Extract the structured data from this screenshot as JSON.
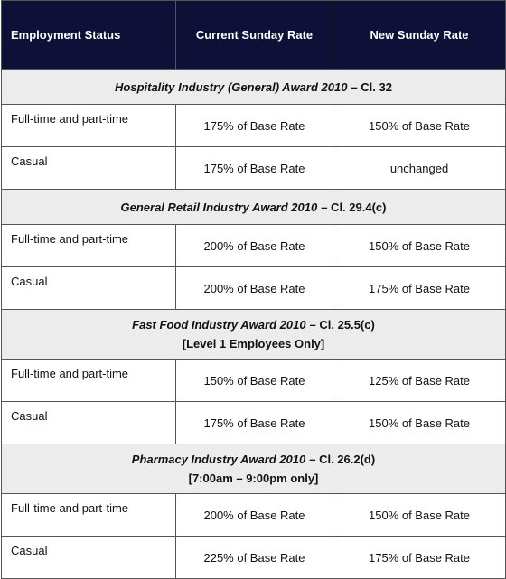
{
  "header": [
    "Employment Status",
    "Current Sunday Rate",
    "New Sunday Rate"
  ],
  "sections": [
    {
      "award": "Hospitality Industry (General) Award 2010",
      "clause": "– Cl. 32",
      "rows": [
        [
          "Full-time and part-time",
          "175% of Base Rate",
          "150% of Base Rate"
        ],
        [
          "Casual",
          "175% of Base Rate",
          "unchanged"
        ]
      ]
    },
    {
      "award": "General Retail Industry Award 2010",
      "clause": "– Cl. 29.4(c)",
      "rows": [
        [
          "Full-time and part-time",
          "200% of Base Rate",
          "150% of Base Rate"
        ],
        [
          "Casual",
          "200% of Base Rate",
          "175% of Base Rate"
        ]
      ]
    },
    {
      "award": "Fast Food Industry Award 2010",
      "clause": "– Cl. 25.5(c)",
      "note": "[Level 1 Employees Only]",
      "rows": [
        [
          "Full-time and part-time",
          "150% of Base Rate",
          "125% of Base Rate"
        ],
        [
          "Casual",
          "175% of Base Rate",
          "150% of Base Rate"
        ]
      ]
    },
    {
      "award": "Pharmacy Industry Award 2010",
      "clause": "– Cl. 26.2(d)",
      "note": "[7:00am – 9:00pm only]",
      "rows": [
        [
          "Full-time and part-time",
          "200% of Base Rate",
          "150% of Base Rate"
        ],
        [
          "Casual",
          "225% of Base Rate",
          "175% of Base Rate"
        ]
      ]
    }
  ]
}
